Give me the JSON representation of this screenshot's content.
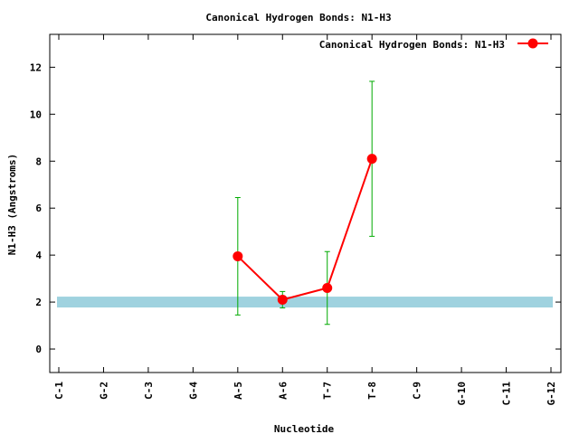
{
  "chart_data": {
    "type": "line",
    "title": "Canonical Hydrogen Bonds: N1-H3",
    "xlabel": "Nucleotide",
    "ylabel": "N1-H3 (Angstroms)",
    "categories": [
      "C-1",
      "G-2",
      "C-3",
      "G-4",
      "A-5",
      "A-6",
      "T-7",
      "T-8",
      "C-9",
      "G-10",
      "C-11",
      "G-12"
    ],
    "ylim": [
      -1,
      13.4
    ],
    "yticks": [
      0,
      2,
      4,
      6,
      8,
      10,
      12
    ],
    "reference_band": {
      "y": 2.0,
      "color": "#9fd2df"
    },
    "legend_position": "top-right",
    "grid": false,
    "series": [
      {
        "name": "Canonical Hydrogen Bonds: N1-H3",
        "color": "#ff0000",
        "errorbar_color": "#00aa00",
        "points": [
          {
            "category": "A-5",
            "y": 3.95,
            "low": 1.45,
            "high": 6.45
          },
          {
            "category": "A-6",
            "y": 2.1,
            "low": 1.75,
            "high": 2.45
          },
          {
            "category": "T-7",
            "y": 2.6,
            "low": 1.05,
            "high": 4.15
          },
          {
            "category": "T-8",
            "y": 8.1,
            "low": 4.8,
            "high": 11.4
          }
        ]
      }
    ]
  }
}
